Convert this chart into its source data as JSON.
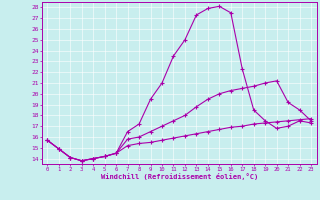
{
  "title": "",
  "xlabel": "Windchill (Refroidissement éolien,°C)",
  "ylabel": "",
  "background_color": "#c8eeee",
  "line_color": "#aa00aa",
  "xlim": [
    -0.5,
    23.5
  ],
  "ylim": [
    13.5,
    28.5
  ],
  "xticks": [
    0,
    1,
    2,
    3,
    4,
    5,
    6,
    7,
    8,
    9,
    10,
    11,
    12,
    13,
    14,
    15,
    16,
    17,
    18,
    19,
    20,
    21,
    22,
    23
  ],
  "yticks": [
    14,
    15,
    16,
    17,
    18,
    19,
    20,
    21,
    22,
    23,
    24,
    25,
    26,
    27,
    28
  ],
  "line1_x": [
    0,
    1,
    2,
    3,
    4,
    5,
    6,
    7,
    8,
    9,
    10,
    11,
    12,
    13,
    14,
    15,
    16,
    17,
    18,
    19,
    20,
    21,
    22,
    23
  ],
  "line1_y": [
    15.7,
    14.9,
    14.1,
    13.8,
    14.0,
    14.2,
    14.5,
    16.5,
    17.2,
    19.5,
    21.0,
    23.5,
    25.0,
    27.3,
    27.9,
    28.1,
    27.5,
    22.3,
    18.5,
    17.5,
    16.8,
    17.0,
    17.5,
    17.3
  ],
  "line2_x": [
    0,
    1,
    2,
    3,
    4,
    5,
    6,
    7,
    8,
    9,
    10,
    11,
    12,
    13,
    14,
    15,
    16,
    17,
    18,
    19,
    20,
    21,
    22,
    23
  ],
  "line2_y": [
    15.7,
    14.9,
    14.1,
    13.8,
    14.0,
    14.2,
    14.5,
    15.8,
    16.0,
    16.5,
    17.0,
    17.5,
    18.0,
    18.8,
    19.5,
    20.0,
    20.3,
    20.5,
    20.7,
    21.0,
    21.2,
    19.2,
    18.5,
    17.5
  ],
  "line3_x": [
    0,
    1,
    2,
    3,
    4,
    5,
    6,
    7,
    8,
    9,
    10,
    11,
    12,
    13,
    14,
    15,
    16,
    17,
    18,
    19,
    20,
    21,
    22,
    23
  ],
  "line3_y": [
    15.7,
    14.9,
    14.1,
    13.8,
    14.0,
    14.2,
    14.5,
    15.2,
    15.4,
    15.5,
    15.7,
    15.9,
    16.1,
    16.3,
    16.5,
    16.7,
    16.9,
    17.0,
    17.2,
    17.3,
    17.4,
    17.5,
    17.6,
    17.7
  ]
}
